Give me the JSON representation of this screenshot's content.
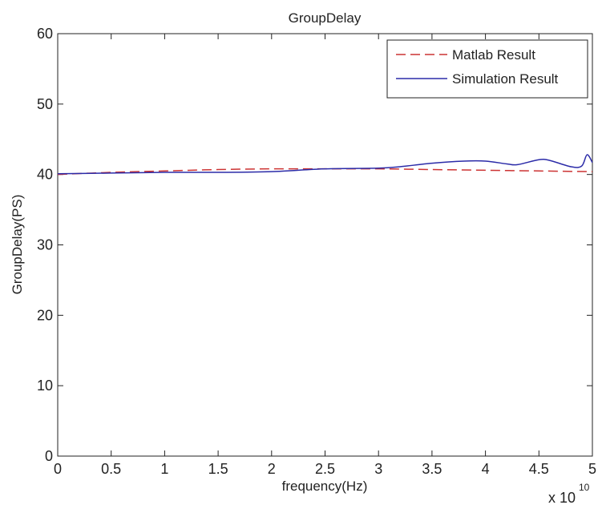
{
  "chart_data": {
    "type": "line",
    "title": "GroupDelay",
    "xlabel": "frequency(Hz)",
    "ylabel": "GroupDelay(PS)",
    "x_exponent_label": "x 10",
    "x_exponent_power": "10",
    "xlim": [
      0,
      5
    ],
    "ylim": [
      0,
      60
    ],
    "x_ticks": [
      0,
      0.5,
      1,
      1.5,
      2,
      2.5,
      3,
      3.5,
      4,
      4.5,
      5
    ],
    "x_tick_labels": [
      "0",
      "0.5",
      "1",
      "1.5",
      "2",
      "2.5",
      "3",
      "3.5",
      "4",
      "4.5",
      "5"
    ],
    "y_ticks": [
      0,
      10,
      20,
      30,
      40,
      50,
      60
    ],
    "y_tick_labels": [
      "0",
      "10",
      "20",
      "30",
      "40",
      "50",
      "60"
    ],
    "grid": false,
    "legend_position": "top-right",
    "series": [
      {
        "name": "Matlab Result",
        "color": "#cc3333",
        "style": "dashed",
        "x": [
          0,
          0.5,
          1,
          1.5,
          2,
          2.5,
          3,
          3.5,
          4,
          4.5,
          5
        ],
        "y": [
          40.0,
          40.3,
          40.5,
          40.7,
          40.8,
          40.8,
          40.8,
          40.7,
          40.6,
          40.5,
          40.4
        ]
      },
      {
        "name": "Simulation Result",
        "color": "#2b2ba8",
        "style": "solid",
        "x": [
          0,
          0.5,
          1,
          1.5,
          2,
          2.5,
          3,
          3.2,
          3.5,
          3.8,
          4.0,
          4.2,
          4.3,
          4.5,
          4.6,
          4.8,
          4.9,
          4.95,
          5.0
        ],
        "y": [
          40.1,
          40.2,
          40.3,
          40.3,
          40.4,
          40.8,
          40.9,
          41.1,
          41.6,
          41.9,
          41.9,
          41.5,
          41.4,
          42.1,
          42.0,
          41.1,
          41.2,
          42.8,
          41.7
        ]
      }
    ]
  }
}
